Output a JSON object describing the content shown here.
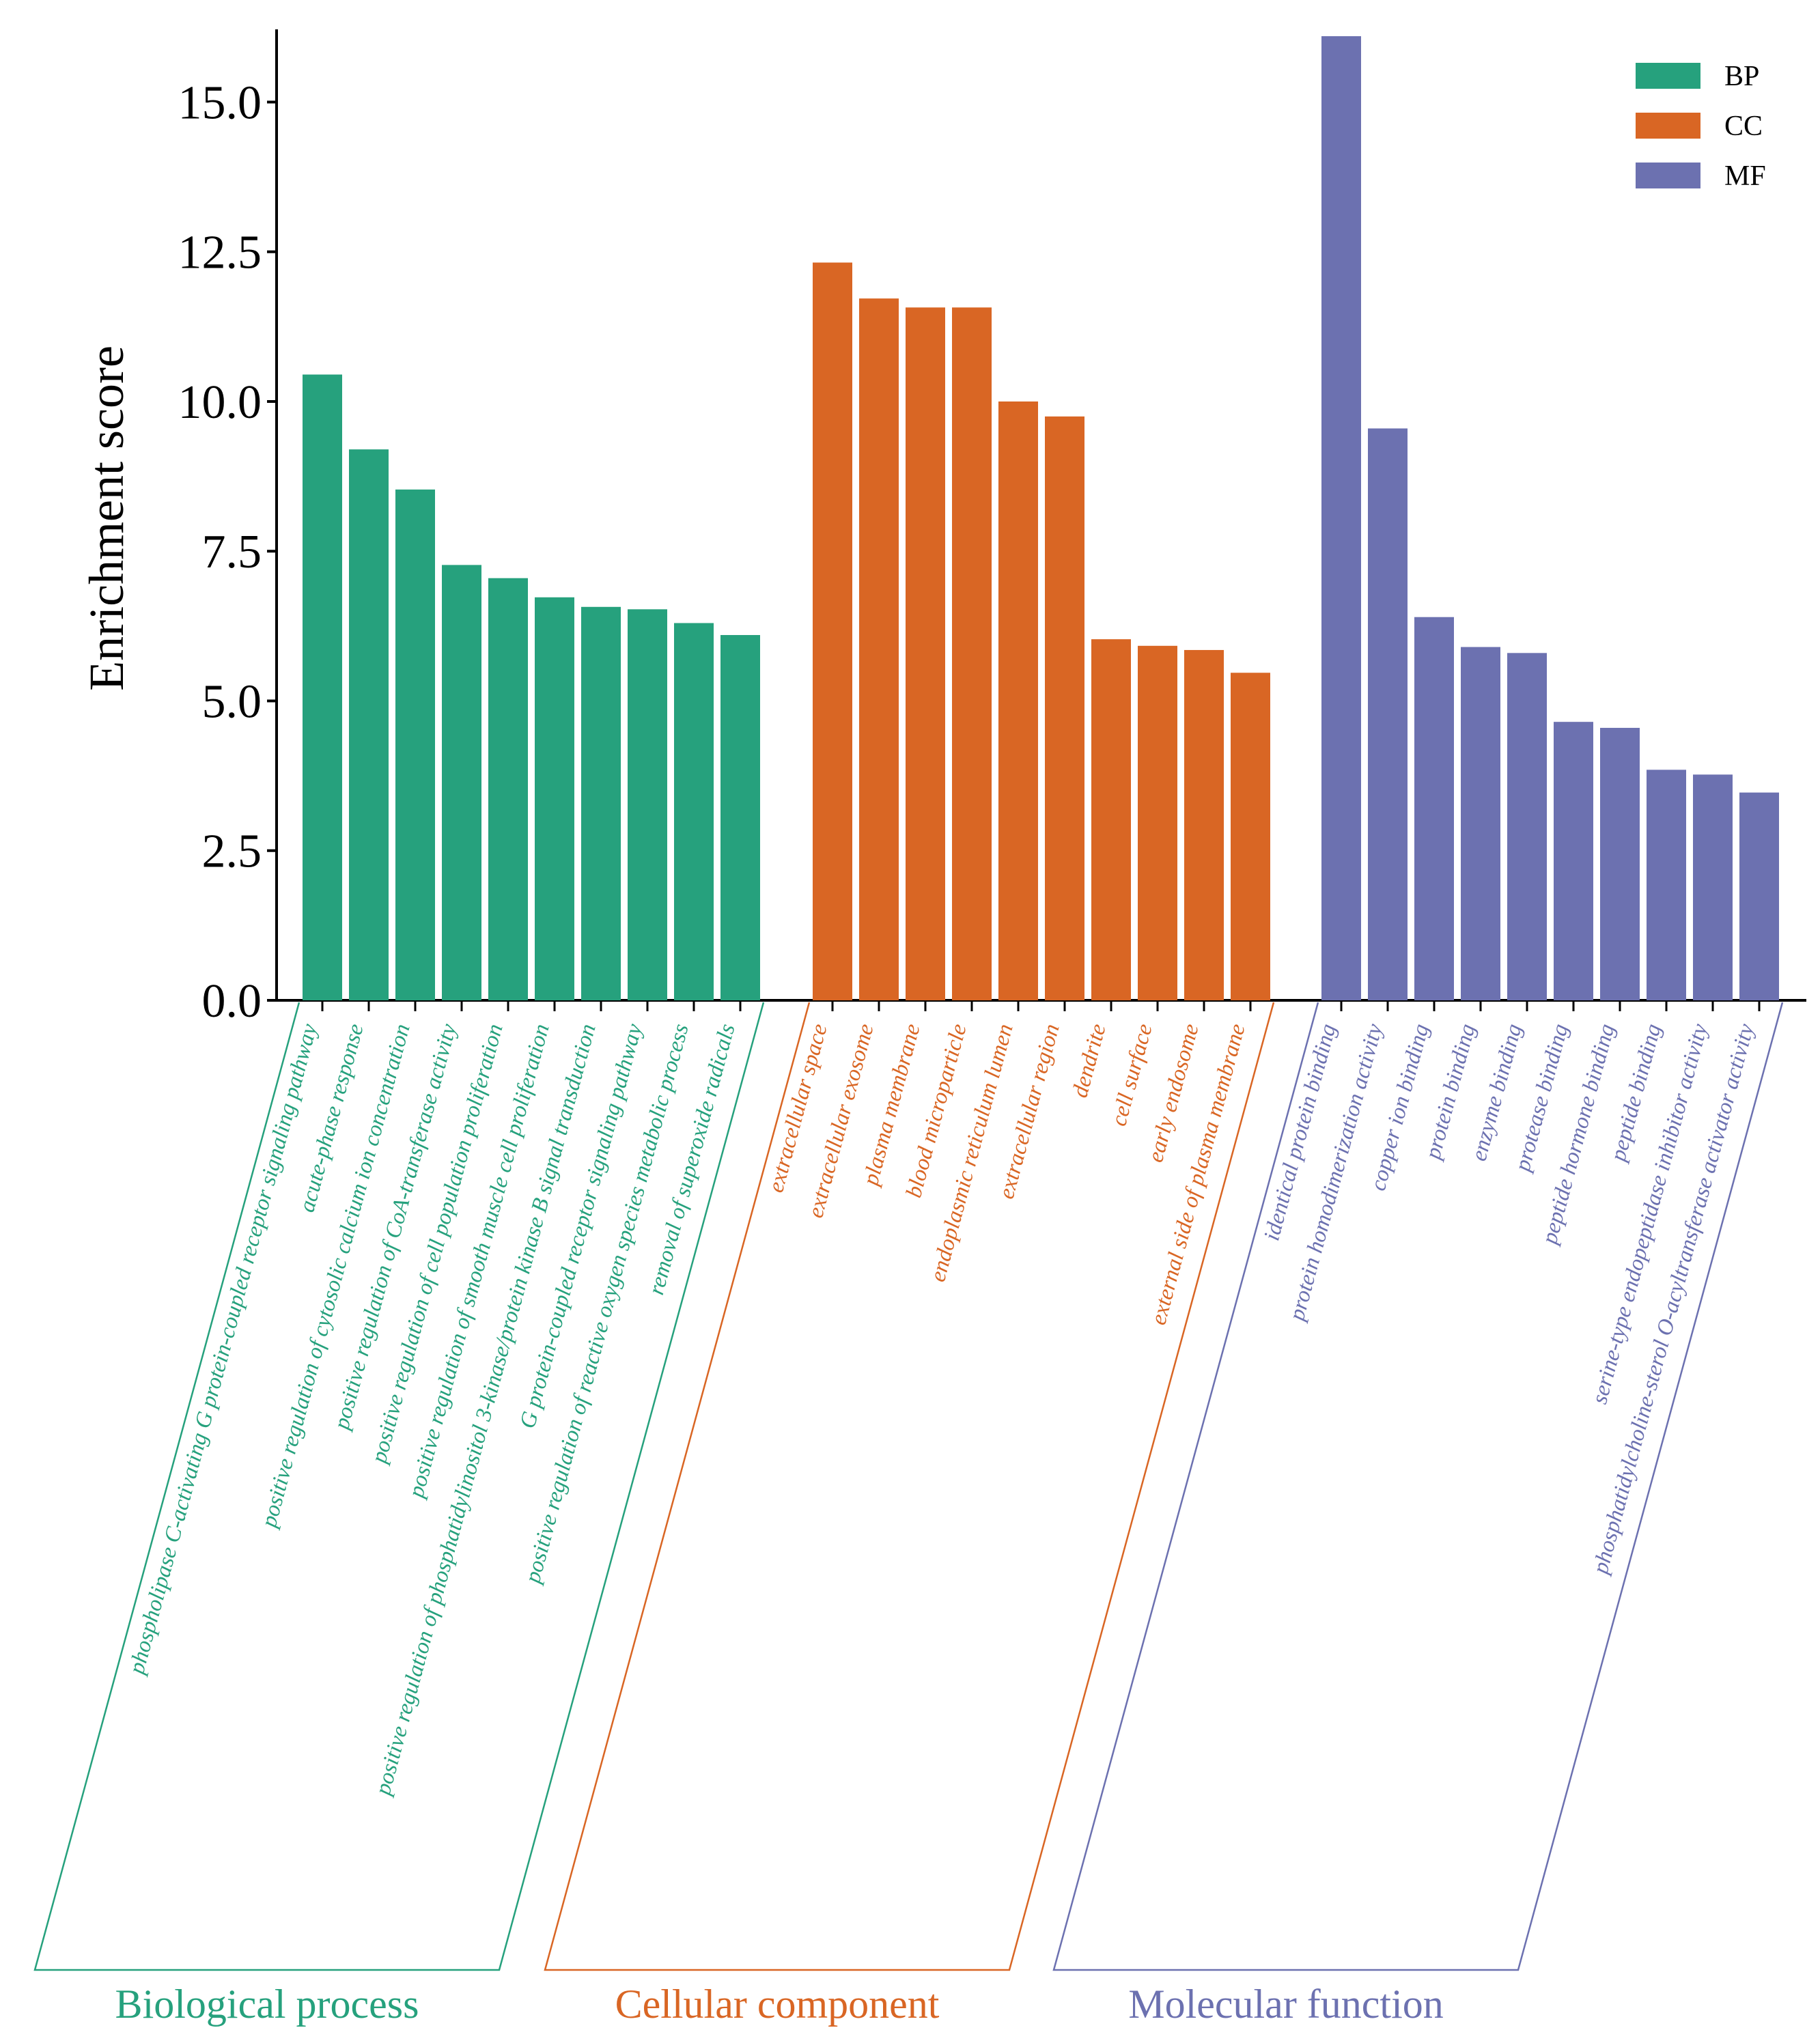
{
  "chart_data": {
    "type": "bar",
    "title": "",
    "xlabel": "",
    "ylabel": "Enrichment score",
    "ylim": [
      0,
      16.1
    ],
    "yticks": [
      "0.0",
      "2.5",
      "5.0",
      "7.5",
      "10.0",
      "12.5",
      "15.0"
    ],
    "grid": false,
    "legend_position": "top-right",
    "legend": [
      {
        "key": "BP",
        "label": "BP",
        "color": "#26A17D"
      },
      {
        "key": "CC",
        "label": "CC",
        "color": "#D96624"
      },
      {
        "key": "MF",
        "label": "MF",
        "color": "#6C71B0"
      }
    ],
    "groups": [
      {
        "key": "BP",
        "name": "Biological process",
        "color": "#26A17D",
        "categories": [
          "phospholipase C-activating G protein-coupled receptor signaling pathway",
          "acute-phase response",
          "positive regulation of cytosolic calcium ion concentration",
          "positive regulation of CoA-transferase activity",
          "positive regulation of cell population proliferation",
          "positive regulation of smooth muscle cell proliferation",
          "positive regulation of phosphatidylinositol 3-kinase/protein kinase B signal transduction",
          "G protein-coupled receptor signaling pathway",
          "positive regulation of reactive oxygen species metabolic process",
          "removal of superoxide radicals"
        ],
        "values": [
          10.45,
          9.2,
          8.53,
          7.27,
          7.05,
          6.73,
          6.57,
          6.53,
          6.3,
          6.1
        ]
      },
      {
        "key": "CC",
        "name": "Cellular component",
        "color": "#D96624",
        "categories": [
          "extracellular space",
          "extracellular exosome",
          "plasma membrane",
          "blood microparticle",
          "endoplasmic reticulum lumen",
          "extracellular region",
          "dendrite",
          "cell surface",
          "early endosome",
          "external side of plasma membrane"
        ],
        "values": [
          12.32,
          11.72,
          11.57,
          11.57,
          10.0,
          9.75,
          6.03,
          5.92,
          5.85,
          5.47
        ]
      },
      {
        "key": "MF",
        "name": "Molecular function",
        "color": "#6C71B0",
        "categories": [
          "identical protein binding",
          "protein homodimerization activity",
          "copper ion binding",
          "protein binding",
          "enzyme binding",
          "protease binding",
          "peptide hormone binding",
          "peptide binding",
          "serine-type endopeptidase inhibitor activity",
          "phosphatidylcholine-sterol O-acyltransferase activator activity"
        ],
        "values": [
          16.1,
          9.55,
          6.4,
          5.9,
          5.8,
          4.65,
          4.55,
          3.85,
          3.77,
          3.47
        ]
      }
    ]
  }
}
